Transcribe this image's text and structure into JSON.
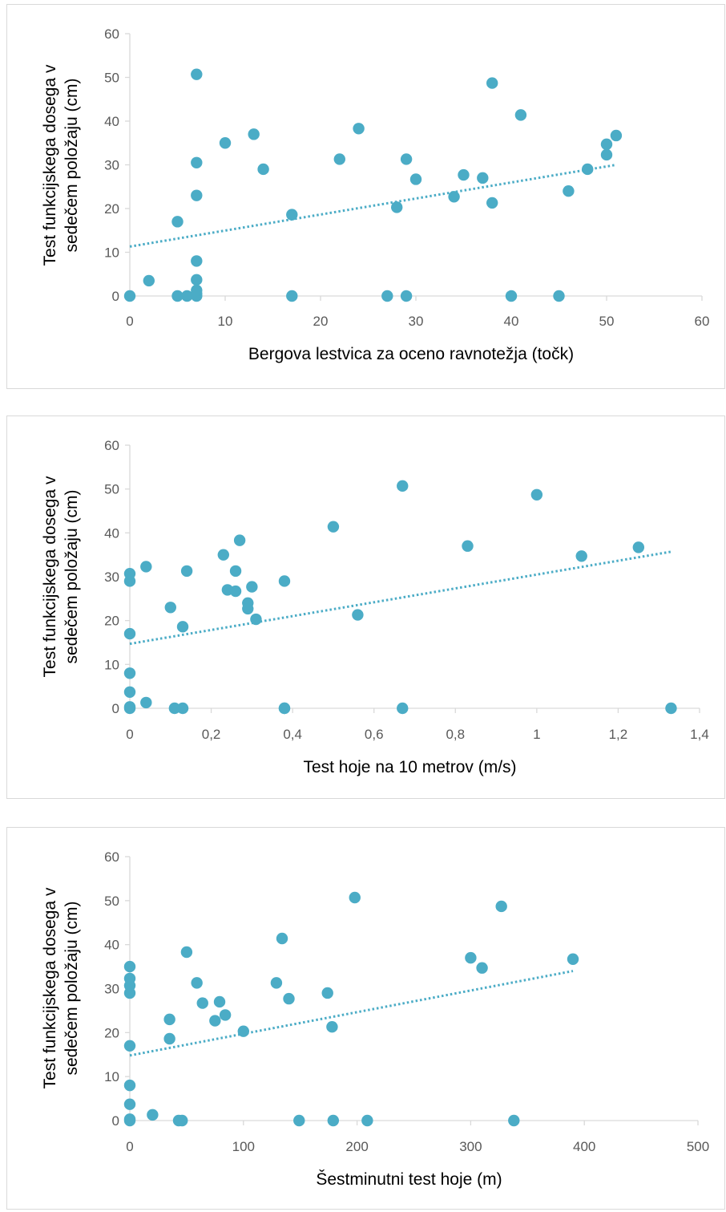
{
  "chart_data": [
    {
      "type": "scatter",
      "xlabel": "Bergova lestvica za oceno ravnotežja (točk)",
      "ylabel": [
        "Test funkcijskega dosega v",
        "sedečem položaju (cm)"
      ],
      "xlim": [
        0,
        60
      ],
      "ylim": [
        0,
        60
      ],
      "xticks": [
        0,
        10,
        20,
        30,
        40,
        50,
        60
      ],
      "xtick_labels": [
        "0",
        "10",
        "20",
        "30",
        "40",
        "50",
        "60"
      ],
      "yticks": [
        0,
        10,
        20,
        30,
        40,
        50,
        60
      ],
      "ytick_labels": [
        "0",
        "10",
        "20",
        "30",
        "40",
        "50",
        "60"
      ],
      "grid": false,
      "color": "#4bacc6",
      "trendline": {
        "type": "linear",
        "x": [
          0,
          51
        ],
        "y": [
          11.3,
          30
        ]
      },
      "points": [
        [
          0,
          0
        ],
        [
          2,
          3.5
        ],
        [
          5,
          0
        ],
        [
          5,
          17
        ],
        [
          6,
          0
        ],
        [
          7,
          0
        ],
        [
          7,
          0.5
        ],
        [
          7,
          1.3
        ],
        [
          7,
          3.7
        ],
        [
          7,
          8
        ],
        [
          7,
          23
        ],
        [
          7,
          30.5
        ],
        [
          7,
          50.7
        ],
        [
          10,
          35
        ],
        [
          13,
          37
        ],
        [
          14,
          29
        ],
        [
          17,
          0
        ],
        [
          17,
          18.6
        ],
        [
          22,
          31.3
        ],
        [
          24,
          38.3
        ],
        [
          27,
          0
        ],
        [
          28,
          20.3
        ],
        [
          29,
          0
        ],
        [
          29,
          31.3
        ],
        [
          30,
          26.7
        ],
        [
          34,
          22.7
        ],
        [
          35,
          27.7
        ],
        [
          37,
          27
        ],
        [
          38,
          21.3
        ],
        [
          38,
          48.7
        ],
        [
          40,
          0
        ],
        [
          41,
          41.4
        ],
        [
          45,
          0
        ],
        [
          46,
          24
        ],
        [
          48,
          29
        ],
        [
          50,
          32.3
        ],
        [
          50,
          34.7
        ],
        [
          51,
          36.7
        ]
      ]
    },
    {
      "type": "scatter",
      "xlabel": "Test hoje na 10 metrov (m/s)",
      "ylabel": [
        "Test funkcijskega dosega v",
        "sedečem položaju (cm)"
      ],
      "xlim": [
        0,
        1.4
      ],
      "ylim": [
        0,
        60
      ],
      "xticks": [
        0,
        0.2,
        0.4,
        0.6,
        0.8,
        1,
        1.2,
        1.4
      ],
      "xtick_labels": [
        "0",
        "0,2",
        "0,4",
        "0,6",
        "0,8",
        "1",
        "1,2",
        "1,4"
      ],
      "yticks": [
        0,
        10,
        20,
        30,
        40,
        50,
        60
      ],
      "ytick_labels": [
        "0",
        "10",
        "20",
        "30",
        "40",
        "50",
        "60"
      ],
      "grid": false,
      "color": "#4bacc6",
      "trendline": {
        "type": "linear",
        "x": [
          0,
          1.33
        ],
        "y": [
          14.7,
          35.7
        ]
      },
      "points": [
        [
          0,
          0
        ],
        [
          0,
          0.3
        ],
        [
          0,
          3.7
        ],
        [
          0,
          8
        ],
        [
          0,
          17
        ],
        [
          0,
          29
        ],
        [
          0,
          30.7
        ],
        [
          0.04,
          1.3
        ],
        [
          0.04,
          32.3
        ],
        [
          0.1,
          23
        ],
        [
          0.11,
          0
        ],
        [
          0.13,
          0
        ],
        [
          0.13,
          18.6
        ],
        [
          0.14,
          31.3
        ],
        [
          0.23,
          35
        ],
        [
          0.24,
          27
        ],
        [
          0.26,
          26.7
        ],
        [
          0.26,
          31.3
        ],
        [
          0.27,
          38.3
        ],
        [
          0.29,
          24
        ],
        [
          0.29,
          22.7
        ],
        [
          0.3,
          27.7
        ],
        [
          0.31,
          20.3
        ],
        [
          0.38,
          0
        ],
        [
          0.38,
          0
        ],
        [
          0.38,
          29
        ],
        [
          0.5,
          41.4
        ],
        [
          0.56,
          21.3
        ],
        [
          0.67,
          0
        ],
        [
          0.67,
          50.7
        ],
        [
          0.83,
          37
        ],
        [
          1.0,
          48.7
        ],
        [
          1.11,
          34.7
        ],
        [
          1.25,
          36.7
        ],
        [
          1.33,
          0
        ]
      ]
    },
    {
      "type": "scatter",
      "xlabel": "Šestminutni test hoje (m)",
      "ylabel": [
        "Test funkcijskega dosega v",
        "sedečem položaju (cm)"
      ],
      "xlim": [
        0,
        500
      ],
      "ylim": [
        0,
        60
      ],
      "xticks": [
        0,
        100,
        200,
        300,
        400,
        500
      ],
      "xtick_labels": [
        "0",
        "100",
        "200",
        "300",
        "400",
        "500"
      ],
      "yticks": [
        0,
        10,
        20,
        30,
        40,
        50,
        60
      ],
      "ytick_labels": [
        "0",
        "10",
        "20",
        "30",
        "40",
        "50",
        "60"
      ],
      "grid": false,
      "color": "#4bacc6",
      "trendline": {
        "type": "linear",
        "x": [
          0,
          390
        ],
        "y": [
          14.8,
          34
        ]
      },
      "points": [
        [
          0,
          0
        ],
        [
          0,
          0.3
        ],
        [
          0,
          3.7
        ],
        [
          0,
          8
        ],
        [
          0,
          17
        ],
        [
          0,
          29
        ],
        [
          0,
          30.7
        ],
        [
          0,
          32.3
        ],
        [
          0,
          35
        ],
        [
          20,
          1.3
        ],
        [
          35,
          18.6
        ],
        [
          35,
          23
        ],
        [
          43,
          0
        ],
        [
          46,
          0
        ],
        [
          50,
          38.3
        ],
        [
          59,
          31.3
        ],
        [
          64,
          26.7
        ],
        [
          75,
          22.7
        ],
        [
          79,
          27
        ],
        [
          84,
          24
        ],
        [
          100,
          20.3
        ],
        [
          129,
          31.3
        ],
        [
          134,
          41.4
        ],
        [
          140,
          27.7
        ],
        [
          149,
          0
        ],
        [
          174,
          29
        ],
        [
          178,
          21.3
        ],
        [
          179,
          0
        ],
        [
          198,
          50.7
        ],
        [
          209,
          0
        ],
        [
          300,
          37
        ],
        [
          310,
          34.7
        ],
        [
          327,
          48.7
        ],
        [
          338,
          0
        ],
        [
          390,
          36.7
        ]
      ]
    }
  ]
}
